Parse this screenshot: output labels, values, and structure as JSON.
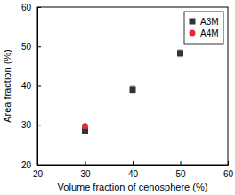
{
  "chart_data": {
    "type": "scatter",
    "x_label": "Volume fraction of cenosphere (%)",
    "y_label": "Area fraction (%)",
    "xlim": [
      20,
      60
    ],
    "xticks": [
      20,
      30,
      40,
      50,
      60
    ],
    "ylim": [
      20,
      60
    ],
    "yticks": [
      20,
      30,
      40,
      50,
      60
    ],
    "legend": "upper-right",
    "series": [
      {
        "name": "A3M",
        "color": "#333333",
        "marker": "square",
        "x": [
          30,
          40,
          50
        ],
        "values": [
          28.7,
          39.0,
          48.3
        ],
        "errors": [
          0.8,
          0.9,
          0.9
        ]
      },
      {
        "name": "A4M",
        "color": "#e8282b",
        "marker": "circle",
        "x": [
          30
        ],
        "values": [
          29.8
        ],
        "errors": [
          0.5
        ]
      }
    ]
  }
}
